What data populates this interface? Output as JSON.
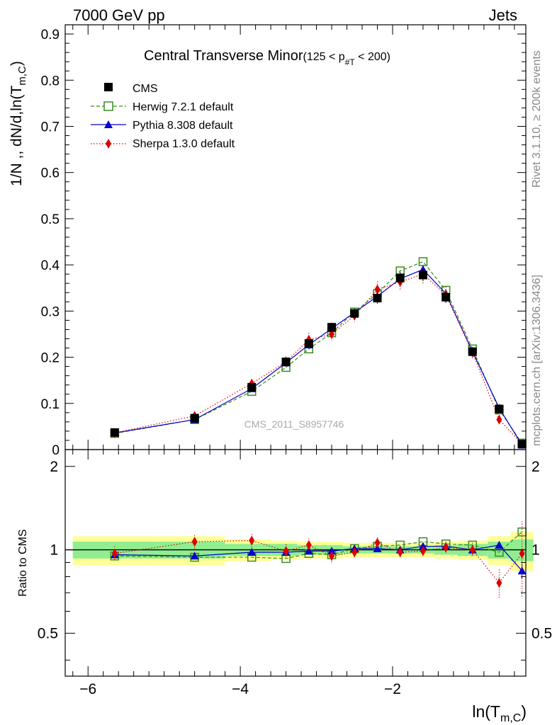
{
  "header": {
    "left": "7000 GeV pp",
    "right": "Jets"
  },
  "side_labels": {
    "rivet": "Rivet 3.1.10, ≥ 200k events",
    "mcplots": "mcplots.cern.ch [arXiv:1306.3436]"
  },
  "chart_data": [
    {
      "type": "line",
      "panel": "main",
      "title": "Central Transverse Minor",
      "title_cut": "(125 < p",
      "title_cut_sub": "#T",
      "title_cut_tail": "  < 200)",
      "ylabel": "1/N ,, dN/d,ln(T",
      "ylabel_sub": "m,C",
      "ylabel_tail": ")",
      "watermark": "CMS_2011_S8957746",
      "xlim": [
        -6.3,
        -0.25
      ],
      "ylim": [
        0,
        0.92
      ],
      "yticks": [
        0,
        0.1,
        0.2,
        0.3,
        0.4,
        0.5,
        0.6,
        0.7,
        0.8,
        0.9
      ],
      "ytick_labels": [
        "0",
        "0.1",
        "0.2",
        "0.3",
        "0.4",
        "0.5",
        "0.6",
        "0.7",
        "0.8",
        "0.9"
      ],
      "x": [
        -5.65,
        -4.6,
        -3.85,
        -3.4,
        -3.1,
        -2.8,
        -2.5,
        -2.2,
        -1.9,
        -1.6,
        -1.3,
        -0.95,
        -0.6,
        -0.3
      ],
      "series": [
        {
          "name": "CMS",
          "color": "#000000",
          "marker": "filled-square",
          "line": "none",
          "values": [
            0.037,
            0.068,
            0.135,
            0.19,
            0.23,
            0.265,
            0.295,
            0.328,
            0.372,
            0.378,
            0.33,
            0.212,
            0.088,
            0.012
          ],
          "errors": [
            0.003,
            0.004,
            0.006,
            0.008,
            0.009,
            0.01,
            0.01,
            0.012,
            0.013,
            0.013,
            0.012,
            0.009,
            0.005,
            0.002
          ]
        },
        {
          "name": "Herwig 7.2.1 default",
          "color": "#3a8c1e",
          "marker": "open-square",
          "line": "dashed",
          "values": [
            0.035,
            0.065,
            0.126,
            0.178,
            0.218,
            0.253,
            0.298,
            0.338,
            0.387,
            0.407,
            0.345,
            0.218,
            0.086,
            0.014
          ]
        },
        {
          "name": "Pythia 8.308 default",
          "color": "#0000cc",
          "marker": "filled-triangle",
          "line": "solid",
          "values": [
            0.036,
            0.065,
            0.132,
            0.188,
            0.227,
            0.262,
            0.297,
            0.332,
            0.37,
            0.39,
            0.338,
            0.212,
            0.09,
            0.01
          ]
        },
        {
          "name": "Sherpa 1.3.0 default",
          "color": "#dd0000",
          "marker": "filled-diamond",
          "line": "dotted",
          "values": [
            0.036,
            0.073,
            0.143,
            0.19,
            0.238,
            0.25,
            0.29,
            0.347,
            0.363,
            0.38,
            0.335,
            0.21,
            0.065,
            0.012
          ],
          "errors": [
            0.003,
            0.005,
            0.008,
            0.012,
            0.015,
            0.014,
            0.014,
            0.018,
            0.018,
            0.02,
            0.018,
            0.012,
            0.007,
            0.004
          ]
        }
      ]
    },
    {
      "type": "line",
      "panel": "ratio",
      "ylabel": "Ratio to CMS",
      "xlabel": "ln(T",
      "xlabel_sub": "m,C",
      "xlabel_tail": ")",
      "xlim": [
        -6.3,
        -0.25
      ],
      "ylim": [
        0.35,
        2.3
      ],
      "xticks": [
        -6,
        -4,
        -2
      ],
      "xtick_labels": [
        "−6",
        "−4",
        "−2"
      ],
      "yticks": [
        0.5,
        1,
        2
      ],
      "ytick_labels": [
        "0.5",
        "1",
        "2"
      ],
      "x": [
        -5.65,
        -4.6,
        -3.85,
        -3.4,
        -3.1,
        -2.8,
        -2.5,
        -2.2,
        -1.9,
        -1.6,
        -1.3,
        -0.95,
        -0.6,
        -0.3
      ],
      "band_edges": [
        -6.2,
        -5.1,
        -4.2,
        -3.6,
        -3.25,
        -2.95,
        -2.65,
        -2.35,
        -2.05,
        -1.75,
        -1.45,
        -1.15,
        -0.75,
        -0.45,
        -0.15
      ],
      "band_inner": [
        0.07,
        0.07,
        0.05,
        0.05,
        0.04,
        0.04,
        0.03,
        0.03,
        0.03,
        0.03,
        0.04,
        0.05,
        0.07,
        0.09
      ],
      "band_outer": [
        0.12,
        0.12,
        0.09,
        0.08,
        0.07,
        0.07,
        0.06,
        0.06,
        0.06,
        0.06,
        0.07,
        0.08,
        0.12,
        0.16
      ],
      "band_colors": {
        "inner": "#90ee90",
        "outer": "#ffff99"
      },
      "series": [
        {
          "name": "Herwig 7.2.1 default",
          "color": "#3a8c1e",
          "marker": "open-square",
          "line": "dashed",
          "values": [
            0.95,
            0.94,
            0.94,
            0.93,
            0.97,
            0.96,
            1.01,
            1.03,
            1.04,
            1.07,
            1.05,
            1.04,
            0.98,
            1.16
          ]
        },
        {
          "name": "Pythia 8.308 default",
          "color": "#0000cc",
          "marker": "filled-triangle",
          "line": "solid",
          "values": [
            0.96,
            0.95,
            0.98,
            0.98,
            0.99,
            0.99,
            1.01,
            1.01,
            1.0,
            1.03,
            1.03,
            1.0,
            1.04,
            0.84
          ],
          "errors": [
            0.01,
            0.01,
            0.01,
            0.01,
            0.01,
            0.01,
            0.01,
            0.01,
            0.01,
            0.01,
            0.01,
            0.01,
            0.02,
            0.05
          ]
        },
        {
          "name": "Sherpa 1.3.0 default",
          "color": "#dd0000",
          "marker": "filled-diamond",
          "line": "dotted",
          "values": [
            0.97,
            1.07,
            1.08,
            0.99,
            1.04,
            0.95,
            0.98,
            1.06,
            0.98,
            0.99,
            1.02,
            1.0,
            0.76,
            0.97
          ],
          "errors": [
            0.06,
            0.06,
            0.06,
            0.06,
            0.06,
            0.06,
            0.05,
            0.05,
            0.05,
            0.05,
            0.05,
            0.06,
            0.09,
            0.3
          ]
        }
      ]
    }
  ]
}
